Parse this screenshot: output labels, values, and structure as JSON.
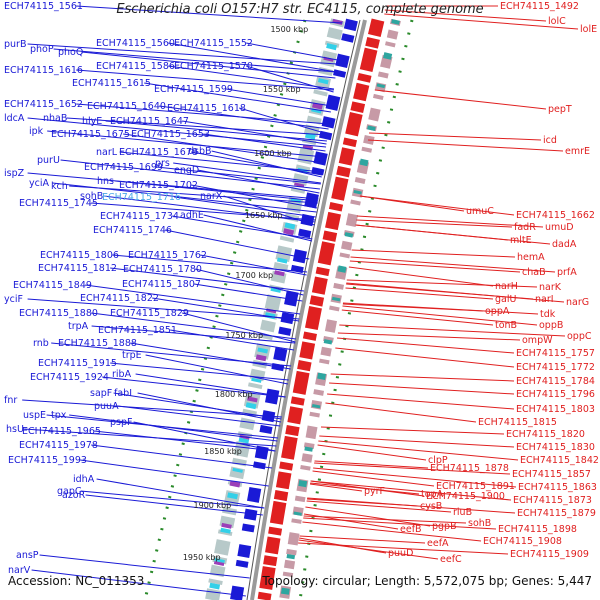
{
  "title": "Escherichia coli O157:H7 str. EC4115, complete genome",
  "footer": {
    "accession": "Accession: NC_011353",
    "summary": "Topology: circular; Length: 5,572,075 bp; Genes: 5,447"
  },
  "colors": {
    "forward": "#1a1ad6",
    "reverse": "#e02020",
    "highlight": "#4aa8e8",
    "ring": "#9a9a9a",
    "tick": "#1a8a1a"
  },
  "kbp_labels": [
    "1500 kbp",
    "1550 kbp",
    "1600 kbp",
    "1650 kbp",
    "1700 kbp",
    "1750 kbp",
    "1800 kbp",
    "1850 kbp",
    "1900 kbp",
    "1950 kbp"
  ],
  "left_labels": [
    "ECH74115_1561",
    "purB",
    "phoP",
    "phoQ",
    "ECH74115_1560",
    "ECH74115_1552",
    "ECH74115_1616",
    "ECH74115_1586",
    "ECH74115_1570",
    "ECH74115_1615",
    "ECH74115_1599",
    "ECH74115_1652",
    "ECH74115_1640",
    "ECH74115_1618",
    "ldcA",
    "nhaB",
    "hlyE",
    "ECH74115_1647",
    "ipk",
    "ECH74115_1675",
    "ECH74115_1653",
    "narL",
    "ECH74115_1678",
    "dsbB",
    "purU",
    "ECH74115_1699",
    "prs",
    "engD",
    "ispZ",
    "yciA",
    "kch",
    "hns",
    "ECH74115_1702",
    "sohB",
    "narX",
    "ECH74115_1745",
    "ECH74115_1716",
    "ECH74115_1734",
    "adhE",
    "ECH74115_1746",
    "ECH74115_1806",
    "ECH74115_1762",
    "ECH74115_1812",
    "ECH74115_1780",
    "ECH74115_1849",
    "ECH74115_1807",
    "yciF",
    "ECH74115_1822",
    "ECH74115_1880",
    "ECH74115_1829",
    "trpA",
    "ECH74115_1851",
    "rnb",
    "ECH74115_1888",
    "trpE",
    "ECH74115_1915",
    "ECH74115_1924",
    "ribA",
    "sapF",
    "fabI",
    "fnr",
    "puuA",
    "uspE",
    "tpx",
    "pspF",
    "hsU",
    "ECH74115_1965",
    "ECH74115_1978",
    "ECH74115_1993",
    "idhA",
    "gapC",
    "azoR",
    "ansP",
    "narV"
  ],
  "right_labels": [
    "ECH74115_1492",
    "lolC",
    "lolE",
    "pepT",
    "icd",
    "emrE",
    "umuC",
    "ECH74115_1662",
    "fadR",
    "umuD",
    "mltE",
    "dadA",
    "hemA",
    "chaB",
    "prfA",
    "narH",
    "narK",
    "galU",
    "narI",
    "narG",
    "oppA",
    "tdk",
    "tonB",
    "oppB",
    "ompW",
    "oppC",
    "ECH74115_1757",
    "ECH74115_1772",
    "ECH74115_1784",
    "ECH74115_1796",
    "ECH74115_1803",
    "ECH74115_1815",
    "ECH74115_1820",
    "ECH74115_1830",
    "clpP",
    "ECH74115_1842",
    "ECH74115_1878",
    "ECH74115_1857",
    "ECH74115_1891",
    "ECH74115_1863",
    "pyrF",
    "topA",
    "ECH74115_1900",
    "ECH74115_1873",
    "cysB",
    "rluB",
    "ECH74115_1879",
    "pgpB",
    "sohB",
    "ECH74115_1898",
    "eefB",
    "ECH74115_1908",
    "eefA",
    "ECH74115_1909",
    "puuD",
    "eefC"
  ]
}
